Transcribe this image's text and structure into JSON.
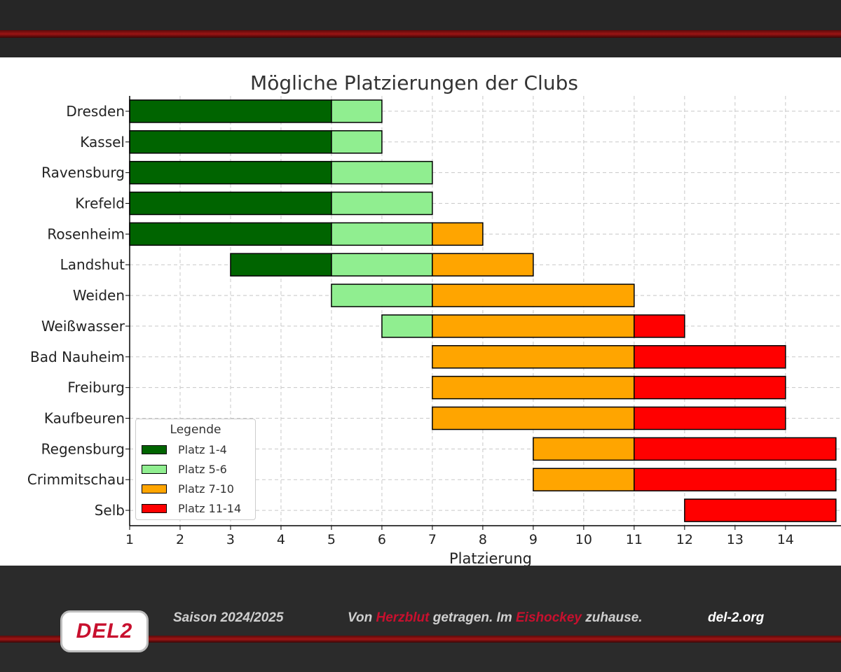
{
  "footer": {
    "season": "Saison 2024/2025",
    "slogan_part1": "Von ",
    "slogan_accent1": "Herzblut",
    "slogan_part2": " getragen. Im ",
    "slogan_accent2": "Eishockey",
    "slogan_part3": " zuhause.",
    "website": "del-2.org",
    "logo_text": "DEL2"
  },
  "colors": {
    "Platz 1-4": "#006400",
    "Platz 5-6": "#90ee90",
    "Platz 7-10": "#ffa500",
    "Platz 11-14": "#ff0000"
  },
  "chart_data": {
    "type": "bar",
    "orientation": "horizontal-stacked-range",
    "title": "Mögliche Platzierungen der Clubs",
    "xlabel": "Platzierung",
    "ylabel": "",
    "xlim": [
      1,
      15.1
    ],
    "xticks": [
      1,
      2,
      3,
      4,
      5,
      6,
      7,
      8,
      9,
      10,
      11,
      12,
      13,
      14
    ],
    "grid": true,
    "legend": {
      "title": "Legende",
      "placement": "lower-left",
      "entries": [
        "Platz 1-4",
        "Platz 5-6",
        "Platz 7-10",
        "Platz 11-14"
      ]
    },
    "categories": [
      "Dresden",
      "Kassel",
      "Ravensburg",
      "Krefeld",
      "Rosenheim",
      "Landshut",
      "Weiden",
      "Weißwasser",
      "Bad Nauheim",
      "Freiburg",
      "Kaufbeuren",
      "Regensburg",
      "Crimmitschau",
      "Selb"
    ],
    "clubs": [
      {
        "name": "Dresden",
        "segments": [
          {
            "group": "Platz 1-4",
            "from": 1,
            "to": 5
          },
          {
            "group": "Platz 5-6",
            "from": 5,
            "to": 6
          }
        ]
      },
      {
        "name": "Kassel",
        "segments": [
          {
            "group": "Platz 1-4",
            "from": 1,
            "to": 5
          },
          {
            "group": "Platz 5-6",
            "from": 5,
            "to": 6
          }
        ]
      },
      {
        "name": "Ravensburg",
        "segments": [
          {
            "group": "Platz 1-4",
            "from": 1,
            "to": 5
          },
          {
            "group": "Platz 5-6",
            "from": 5,
            "to": 7
          }
        ]
      },
      {
        "name": "Krefeld",
        "segments": [
          {
            "group": "Platz 1-4",
            "from": 1,
            "to": 5
          },
          {
            "group": "Platz 5-6",
            "from": 5,
            "to": 7
          }
        ]
      },
      {
        "name": "Rosenheim",
        "segments": [
          {
            "group": "Platz 1-4",
            "from": 1,
            "to": 5
          },
          {
            "group": "Platz 5-6",
            "from": 5,
            "to": 7
          },
          {
            "group": "Platz 7-10",
            "from": 7,
            "to": 8
          }
        ]
      },
      {
        "name": "Landshut",
        "segments": [
          {
            "group": "Platz 1-4",
            "from": 3,
            "to": 5
          },
          {
            "group": "Platz 5-6",
            "from": 5,
            "to": 7
          },
          {
            "group": "Platz 7-10",
            "from": 7,
            "to": 9
          }
        ]
      },
      {
        "name": "Weiden",
        "segments": [
          {
            "group": "Platz 5-6",
            "from": 5,
            "to": 7
          },
          {
            "group": "Platz 7-10",
            "from": 7,
            "to": 11
          }
        ]
      },
      {
        "name": "Weißwasser",
        "segments": [
          {
            "group": "Platz 5-6",
            "from": 6,
            "to": 7
          },
          {
            "group": "Platz 7-10",
            "from": 7,
            "to": 11
          },
          {
            "group": "Platz 11-14",
            "from": 11,
            "to": 12
          }
        ]
      },
      {
        "name": "Bad Nauheim",
        "segments": [
          {
            "group": "Platz 7-10",
            "from": 7,
            "to": 11
          },
          {
            "group": "Platz 11-14",
            "from": 11,
            "to": 14
          }
        ]
      },
      {
        "name": "Freiburg",
        "segments": [
          {
            "group": "Platz 7-10",
            "from": 7,
            "to": 11
          },
          {
            "group": "Platz 11-14",
            "from": 11,
            "to": 14
          }
        ]
      },
      {
        "name": "Kaufbeuren",
        "segments": [
          {
            "group": "Platz 7-10",
            "from": 7,
            "to": 11
          },
          {
            "group": "Platz 11-14",
            "from": 11,
            "to": 14
          }
        ]
      },
      {
        "name": "Regensburg",
        "segments": [
          {
            "group": "Platz 7-10",
            "from": 9,
            "to": 11
          },
          {
            "group": "Platz 11-14",
            "from": 11,
            "to": 15
          }
        ]
      },
      {
        "name": "Crimmitschau",
        "segments": [
          {
            "group": "Platz 7-10",
            "from": 9,
            "to": 11
          },
          {
            "group": "Platz 11-14",
            "from": 11,
            "to": 15
          }
        ]
      },
      {
        "name": "Selb",
        "segments": [
          {
            "group": "Platz 11-14",
            "from": 12,
            "to": 15
          }
        ]
      }
    ]
  }
}
